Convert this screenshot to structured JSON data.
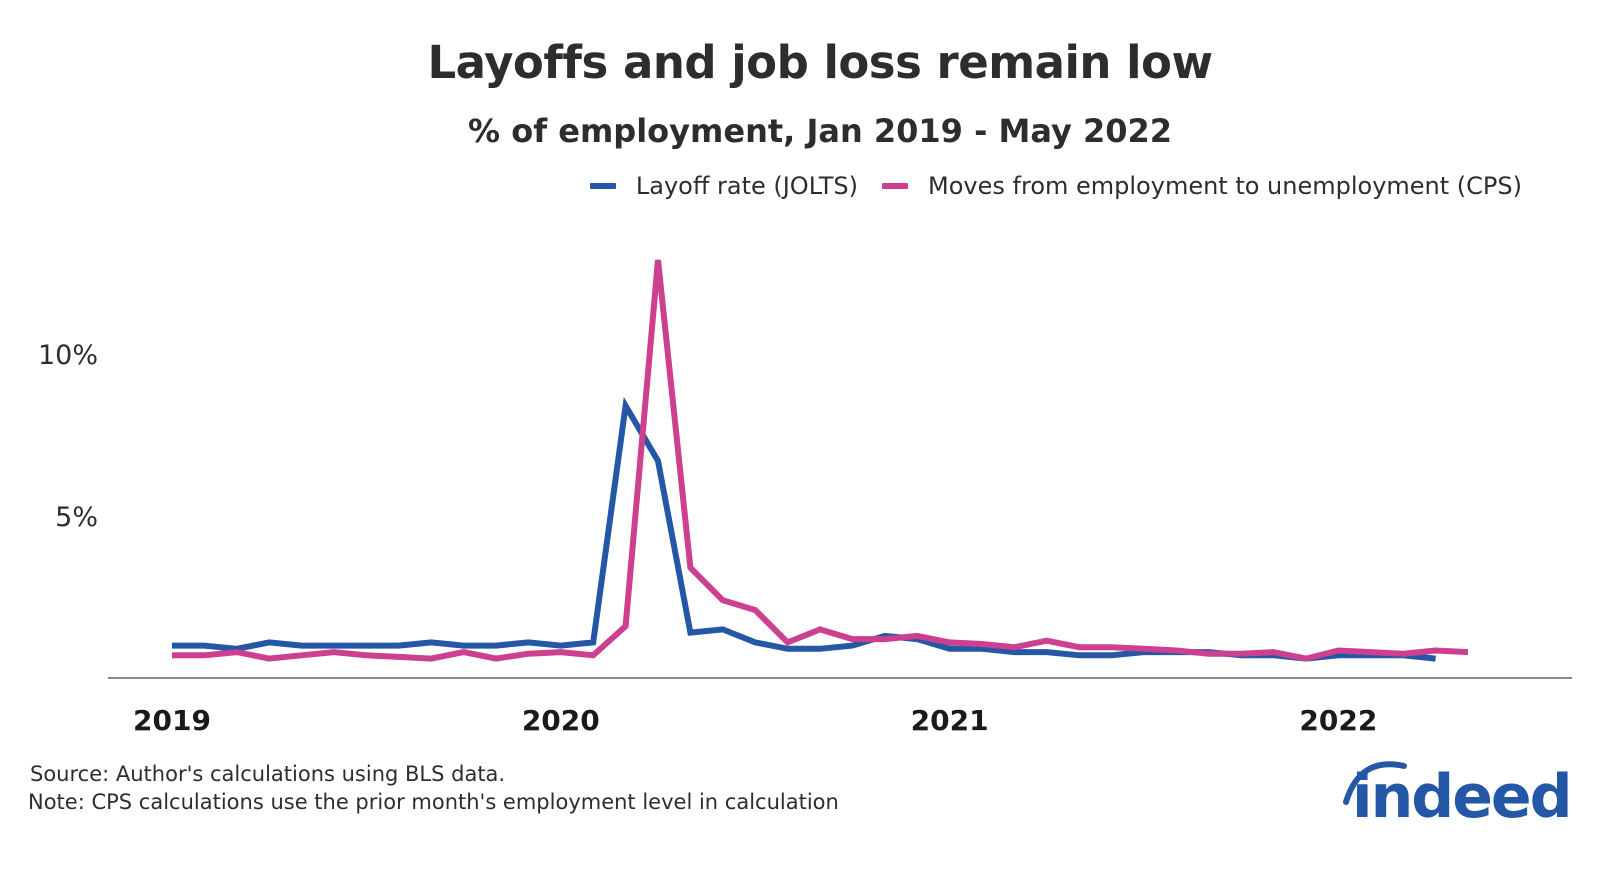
{
  "chart_data": {
    "type": "line",
    "title": "Layoffs and job loss remain low",
    "subtitle": "% of employment, Jan 2019 - May 2022",
    "xlabel": "",
    "ylabel": "",
    "x_start": "2019-01",
    "x_end": "2022-05",
    "x_ticks": [
      "2019",
      "2020",
      "2021",
      "2022"
    ],
    "y_ticks": [
      {
        "value": 5,
        "label": "5%"
      },
      {
        "value": 10,
        "label": "10%"
      }
    ],
    "ylim": [
      0,
      14
    ],
    "grid": false,
    "legend_position": "top-right",
    "series": [
      {
        "name": "Layoff rate (JOLTS)",
        "color": "#2557a7",
        "x": [
          "2019-01",
          "2019-02",
          "2019-03",
          "2019-04",
          "2019-05",
          "2019-06",
          "2019-07",
          "2019-08",
          "2019-09",
          "2019-10",
          "2019-11",
          "2019-12",
          "2020-01",
          "2020-02",
          "2020-03",
          "2020-04",
          "2020-05",
          "2020-06",
          "2020-07",
          "2020-08",
          "2020-09",
          "2020-10",
          "2020-11",
          "2020-12",
          "2021-01",
          "2021-02",
          "2021-03",
          "2021-04",
          "2021-05",
          "2021-06",
          "2021-07",
          "2021-08",
          "2021-09",
          "2021-10",
          "2021-11",
          "2021-12",
          "2022-01",
          "2022-02",
          "2022-03",
          "2022-04"
        ],
        "values": [
          1.0,
          1.0,
          0.9,
          1.1,
          1.0,
          1.0,
          1.0,
          1.0,
          1.1,
          1.0,
          1.0,
          1.1,
          1.0,
          1.1,
          8.4,
          6.7,
          1.4,
          1.5,
          1.1,
          0.9,
          0.9,
          1.0,
          1.3,
          1.2,
          0.9,
          0.9,
          0.8,
          0.8,
          0.7,
          0.7,
          0.8,
          0.8,
          0.8,
          0.7,
          0.7,
          0.6,
          0.7,
          0.7,
          0.7,
          0.6
        ]
      },
      {
        "name": "Moves from employment to unemployment (CPS)",
        "color": "#cd3f8f",
        "x": [
          "2019-01",
          "2019-02",
          "2019-03",
          "2019-04",
          "2019-05",
          "2019-06",
          "2019-07",
          "2019-08",
          "2019-09",
          "2019-10",
          "2019-11",
          "2019-12",
          "2020-01",
          "2020-02",
          "2020-03",
          "2020-04",
          "2020-05",
          "2020-06",
          "2020-07",
          "2020-08",
          "2020-09",
          "2020-10",
          "2020-11",
          "2020-12",
          "2021-01",
          "2021-02",
          "2021-03",
          "2021-04",
          "2021-05",
          "2021-06",
          "2021-07",
          "2021-08",
          "2021-09",
          "2021-10",
          "2021-11",
          "2021-12",
          "2022-01",
          "2022-02",
          "2022-03",
          "2022-04",
          "2022-05"
        ],
        "values": [
          0.7,
          0.7,
          0.8,
          0.6,
          0.7,
          0.8,
          0.7,
          0.65,
          0.6,
          0.8,
          0.6,
          0.75,
          0.8,
          0.7,
          1.6,
          12.9,
          3.4,
          2.4,
          2.1,
          1.1,
          1.5,
          1.2,
          1.2,
          1.3,
          1.1,
          1.05,
          0.95,
          1.15,
          0.95,
          0.95,
          0.9,
          0.85,
          0.75,
          0.75,
          0.8,
          0.6,
          0.85,
          0.8,
          0.75,
          0.85,
          0.8
        ]
      }
    ]
  },
  "footer": {
    "source": "Source: Author's calculations using BLS data.",
    "note": "Note: CPS calculations use the prior month's employment level in calculation"
  },
  "logo": {
    "text": "indeed",
    "color": "#2557a7"
  }
}
